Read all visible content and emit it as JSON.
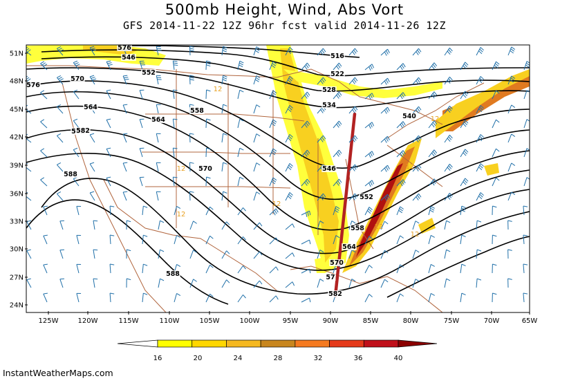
{
  "title": "500mb Height, Wind, Abs Vort",
  "subtitle": "GFS 2014-11-22 12Z 96hr fcst valid 2014-11-26 12Z",
  "credit": "InstantWeatherMaps.com",
  "lat_ticks": [
    "51N",
    "48N",
    "45N",
    "42N",
    "39N",
    "36N",
    "33N",
    "30N",
    "27N",
    "24N"
  ],
  "lon_ticks": [
    "125W",
    "120W",
    "115W",
    "110W",
    "105W",
    "100W",
    "95W",
    "90W",
    "85W",
    "80W",
    "75W",
    "70W",
    "65W"
  ],
  "height_contours": {
    "unit": "dam",
    "labels": [
      {
        "value": "516"
      },
      {
        "value": "522"
      },
      {
        "value": "528"
      },
      {
        "value": "534"
      },
      {
        "value": "540"
      },
      {
        "value": "546"
      },
      {
        "value": "552"
      },
      {
        "value": "558"
      },
      {
        "value": "564"
      },
      {
        "value": "570"
      },
      {
        "value": "576"
      },
      {
        "value": "582"
      },
      {
        "value": "588"
      },
      {
        "value": "546"
      },
      {
        "value": "552"
      },
      {
        "value": "558"
      },
      {
        "value": "564"
      },
      {
        "value": "570"
      },
      {
        "value": "576"
      },
      {
        "value": "570"
      },
      {
        "value": "564"
      },
      {
        "value": "582"
      },
      {
        "value": "588"
      },
      {
        "value": "57"
      },
      {
        "value": "576"
      },
      {
        "value": "582"
      }
    ]
  },
  "vorticity_labels": [
    "12",
    "12",
    "12",
    "12",
    "12",
    "12",
    "12",
    "12"
  ],
  "colorbar": {
    "labels": [
      "16",
      "20",
      "24",
      "28",
      "32",
      "36",
      "40"
    ],
    "colors": [
      "#ffff00",
      "#ffd700",
      "#f5b820",
      "#c8861e",
      "#f57a20",
      "#e53a1a",
      "#c0101a",
      "#8b0000"
    ]
  },
  "colors": {
    "vort_light": "#ffff3c",
    "vort_mid": "#f8d020",
    "vort_high": "#e07a20",
    "vort_max": "#b01010",
    "barbs": "#1f6fa8",
    "borders": "#b0643c",
    "trough_axis": "#b22222"
  }
}
